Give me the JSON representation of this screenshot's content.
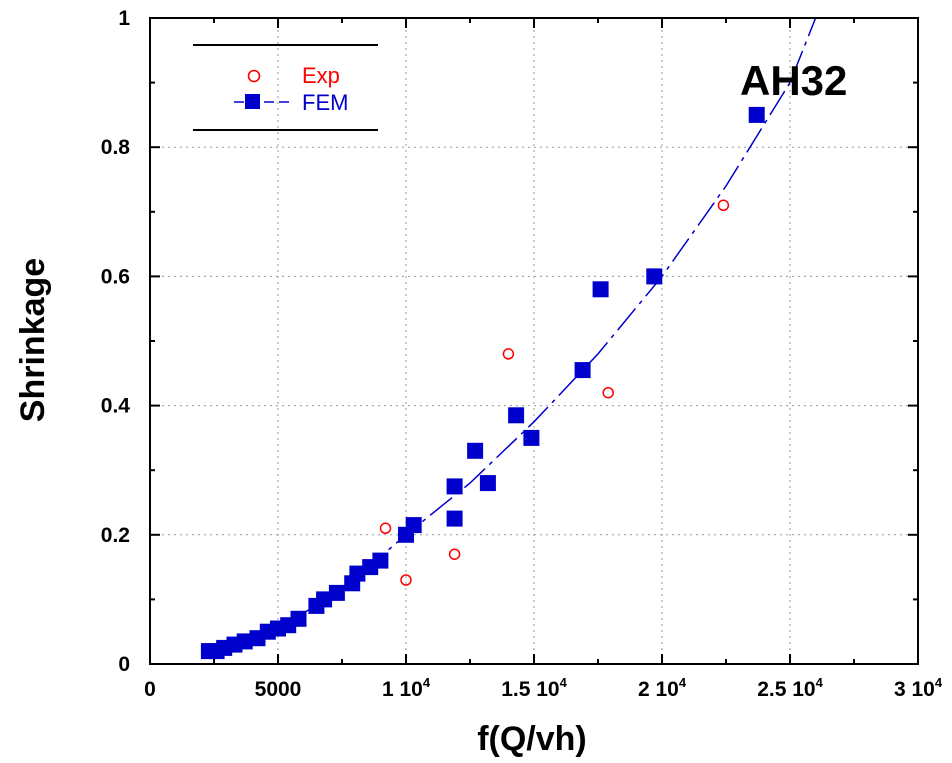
{
  "chart_data": {
    "type": "scatter",
    "xlabel": "f(Q/vh)",
    "ylabel": "Shrinkage",
    "annotation": "AH32",
    "xlim": [
      0,
      30000
    ],
    "ylim": [
      0,
      1
    ],
    "grid": true,
    "legend_position": "top-left",
    "x_ticks": [
      {
        "value": 0,
        "base": "0",
        "exp": ""
      },
      {
        "value": 5000,
        "base": "5000",
        "exp": ""
      },
      {
        "value": 10000,
        "base": "1 10",
        "exp": "4"
      },
      {
        "value": 15000,
        "base": "1.5 10",
        "exp": "4"
      },
      {
        "value": 20000,
        "base": "2 10",
        "exp": "4"
      },
      {
        "value": 25000,
        "base": "2.5 10",
        "exp": "4"
      },
      {
        "value": 30000,
        "base": "3 10",
        "exp": "4"
      }
    ],
    "y_ticks": [
      {
        "value": 0,
        "label": "0"
      },
      {
        "value": 0.2,
        "label": "0.2"
      },
      {
        "value": 0.4,
        "label": "0.4"
      },
      {
        "value": 0.6,
        "label": "0.6"
      },
      {
        "value": 0.8,
        "label": "0.8"
      },
      {
        "value": 1,
        "label": "1"
      }
    ],
    "series": [
      {
        "name": "Exp",
        "marker": "open-circle",
        "color": "#ff0000",
        "points": [
          {
            "x": 9200,
            "y": 0.21
          },
          {
            "x": 10000,
            "y": 0.13
          },
          {
            "x": 11900,
            "y": 0.17
          },
          {
            "x": 14000,
            "y": 0.48
          },
          {
            "x": 17900,
            "y": 0.42
          },
          {
            "x": 22400,
            "y": 0.71
          }
        ]
      },
      {
        "name": "FEM",
        "marker": "filled-square",
        "color": "#0000cc",
        "points": [
          {
            "x": 2300,
            "y": 0.02
          },
          {
            "x": 2600,
            "y": 0.02
          },
          {
            "x": 2900,
            "y": 0.025
          },
          {
            "x": 3300,
            "y": 0.03
          },
          {
            "x": 3700,
            "y": 0.035
          },
          {
            "x": 4200,
            "y": 0.04
          },
          {
            "x": 4600,
            "y": 0.05
          },
          {
            "x": 5000,
            "y": 0.055
          },
          {
            "x": 5400,
            "y": 0.06
          },
          {
            "x": 5800,
            "y": 0.07
          },
          {
            "x": 6500,
            "y": 0.09
          },
          {
            "x": 6800,
            "y": 0.1
          },
          {
            "x": 7300,
            "y": 0.11
          },
          {
            "x": 7900,
            "y": 0.125
          },
          {
            "x": 8100,
            "y": 0.14
          },
          {
            "x": 8600,
            "y": 0.15
          },
          {
            "x": 9000,
            "y": 0.16
          },
          {
            "x": 10000,
            "y": 0.2
          },
          {
            "x": 10300,
            "y": 0.215
          },
          {
            "x": 11900,
            "y": 0.225
          },
          {
            "x": 11900,
            "y": 0.275
          },
          {
            "x": 12700,
            "y": 0.33
          },
          {
            "x": 13200,
            "y": 0.28
          },
          {
            "x": 14300,
            "y": 0.385
          },
          {
            "x": 14900,
            "y": 0.35
          },
          {
            "x": 16900,
            "y": 0.455
          },
          {
            "x": 17600,
            "y": 0.58
          },
          {
            "x": 19700,
            "y": 0.6
          },
          {
            "x": 23700,
            "y": 0.85
          }
        ],
        "fit_line": [
          {
            "x": 2300,
            "y": 0.015
          },
          {
            "x": 5000,
            "y": 0.055
          },
          {
            "x": 7500,
            "y": 0.115
          },
          {
            "x": 10000,
            "y": 0.2
          },
          {
            "x": 12500,
            "y": 0.28
          },
          {
            "x": 15000,
            "y": 0.375
          },
          {
            "x": 17500,
            "y": 0.48
          },
          {
            "x": 20000,
            "y": 0.6
          },
          {
            "x": 22500,
            "y": 0.74
          },
          {
            "x": 25000,
            "y": 0.9
          },
          {
            "x": 26000,
            "y": 1.0
          }
        ]
      }
    ]
  }
}
